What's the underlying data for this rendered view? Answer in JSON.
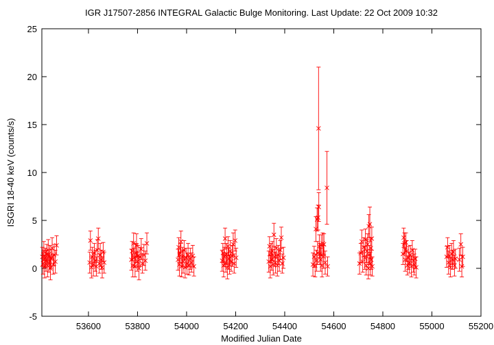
{
  "chart_data": {
    "type": "scatter",
    "title": "IGR J17507-2856   INTEGRAL Galactic Bulge Monitoring.  Last Update: 22 Oct 2009 10:32",
    "xlabel": "Modified Julian Date",
    "ylabel": "ISGRI 18-40 keV (counts/s)",
    "xlim": [
      53410,
      55200
    ],
    "ylim": [
      -5,
      25
    ],
    "x_ticks": [
      53600,
      53800,
      54000,
      54200,
      54400,
      54600,
      54800,
      55000,
      55200
    ],
    "y_ticks": [
      -5,
      0,
      5,
      10,
      15,
      20,
      25
    ],
    "grid": false,
    "legend": "none",
    "series_color": "#ff0000",
    "marker": "x with error bars",
    "series": [
      {
        "points": [
          [
            53412,
            1.2,
            1.0
          ],
          [
            53415,
            0.5,
            1.1
          ],
          [
            53418,
            1.8,
            1.0
          ],
          [
            53421,
            0.2,
            1.2
          ],
          [
            53424,
            1.1,
            1.0
          ],
          [
            53427,
            0.8,
            1.1
          ],
          [
            53430,
            1.5,
            1.0
          ],
          [
            53433,
            0.3,
            1.2
          ],
          [
            53436,
            1.9,
            1.1
          ],
          [
            53439,
            0.6,
            1.0
          ],
          [
            53442,
            1.3,
            1.1
          ],
          [
            53445,
            0.0,
            1.2
          ],
          [
            53448,
            1.0,
            1.0
          ],
          [
            53452,
            2.1,
            1.1
          ],
          [
            53456,
            0.4,
            1.0
          ],
          [
            53460,
            1.4,
            1.1
          ],
          [
            53465,
            0.7,
            1.2
          ],
          [
            53470,
            2.4,
            1.0
          ],
          [
            53605,
            0.6,
            1.1
          ],
          [
            53608,
            2.9,
            1.0
          ],
          [
            53612,
            0.1,
            1.1
          ],
          [
            53616,
            1.2,
            1.0
          ],
          [
            53620,
            0.4,
            1.2
          ],
          [
            53624,
            1.6,
            1.0
          ],
          [
            53628,
            0.8,
            1.1
          ],
          [
            53632,
            0.2,
            1.0
          ],
          [
            53636,
            1.9,
            1.1
          ],
          [
            53640,
            3.1,
            1.1
          ],
          [
            53644,
            0.5,
            1.0
          ],
          [
            53648,
            1.4,
            1.2
          ],
          [
            53652,
            0.9,
            1.0
          ],
          [
            53656,
            0.1,
            1.1
          ],
          [
            53660,
            1.7,
            1.0
          ],
          [
            53664,
            0.6,
            1.1
          ],
          [
            53775,
            0.9,
            1.1
          ],
          [
            53778,
            1.8,
            1.0
          ],
          [
            53781,
            0.3,
            1.2
          ],
          [
            53784,
            2.6,
            1.1
          ],
          [
            53787,
            1.1,
            1.0
          ],
          [
            53790,
            0.2,
            1.1
          ],
          [
            53793,
            1.6,
            1.0
          ],
          [
            53796,
            2.4,
            1.2
          ],
          [
            53799,
            0.7,
            1.0
          ],
          [
            53802,
            1.3,
            1.1
          ],
          [
            53806,
            0.0,
            1.2
          ],
          [
            53810,
            1.2,
            1.0
          ],
          [
            53815,
            2.0,
            1.1
          ],
          [
            53820,
            0.5,
            1.0
          ],
          [
            53826,
            1.4,
            1.1
          ],
          [
            53832,
            0.8,
            1.0
          ],
          [
            53838,
            2.6,
            1.1
          ],
          [
            53965,
            0.9,
            1.1
          ],
          [
            53968,
            2.2,
            1.0
          ],
          [
            53971,
            0.4,
            1.2
          ],
          [
            53974,
            1.6,
            1.0
          ],
          [
            53977,
            2.8,
            1.1
          ],
          [
            53980,
            0.2,
            1.1
          ],
          [
            53983,
            1.2,
            1.0
          ],
          [
            53986,
            0.7,
            1.2
          ],
          [
            53990,
            1.9,
            1.0
          ],
          [
            53994,
            0.1,
            1.1
          ],
          [
            53998,
            1.1,
            1.0
          ],
          [
            54002,
            0.5,
            1.1
          ],
          [
            54006,
            1.4,
            1.2
          ],
          [
            54010,
            0.3,
            1.0
          ],
          [
            54015,
            1.0,
            1.1
          ],
          [
            54020,
            0.6,
            1.0
          ],
          [
            54025,
            1.3,
            1.1
          ],
          [
            54030,
            0.2,
            1.0
          ],
          [
            54145,
            0.8,
            1.1
          ],
          [
            54148,
            1.6,
            1.0
          ],
          [
            54151,
            0.3,
            1.2
          ],
          [
            54154,
            1.2,
            1.0
          ],
          [
            54157,
            3.1,
            1.1
          ],
          [
            54160,
            0.6,
            1.0
          ],
          [
            54163,
            1.5,
            1.1
          ],
          [
            54166,
            0.1,
            1.2
          ],
          [
            54169,
            2.3,
            1.0
          ],
          [
            54172,
            1.0,
            1.1
          ],
          [
            54175,
            0.4,
            1.0
          ],
          [
            54178,
            1.8,
            1.1
          ],
          [
            54182,
            0.7,
            1.0
          ],
          [
            54186,
            1.3,
            1.1
          ],
          [
            54190,
            2.5,
            1.2
          ],
          [
            54194,
            0.5,
            1.0
          ],
          [
            54198,
            2.9,
            1.1
          ],
          [
            54202,
            1.1,
            1.0
          ],
          [
            54335,
            0.7,
            1.1
          ],
          [
            54338,
            2.3,
            1.0
          ],
          [
            54341,
            0.2,
            1.2
          ],
          [
            54344,
            1.6,
            1.0
          ],
          [
            54347,
            0.9,
            1.1
          ],
          [
            54350,
            1.8,
            1.0
          ],
          [
            54353,
            0.4,
            1.1
          ],
          [
            54356,
            3.5,
            1.2
          ],
          [
            54359,
            1.2,
            1.0
          ],
          [
            54362,
            0.6,
            1.1
          ],
          [
            54366,
            2.1,
            1.0
          ],
          [
            54370,
            0.3,
            1.1
          ],
          [
            54374,
            1.4,
            1.0
          ],
          [
            54378,
            0.8,
            1.1
          ],
          [
            54382,
            1.9,
            1.0
          ],
          [
            54386,
            3.2,
            1.1
          ],
          [
            54390,
            0.5,
            1.0
          ],
          [
            54395,
            1.1,
            1.1
          ],
          [
            54515,
            0.4,
            1.2
          ],
          [
            54520,
            1.2,
            1.1
          ],
          [
            54524,
            0.3,
            1.2
          ],
          [
            54527,
            4.1,
            1.3
          ],
          [
            54530,
            0.8,
            1.1
          ],
          [
            54532,
            5.1,
            1.2
          ],
          [
            54534,
            1.6,
            1.2
          ],
          [
            54536,
            5.3,
            1.3
          ],
          [
            54538,
            14.6,
            6.4
          ],
          [
            54539,
            6.4,
            1.5
          ],
          [
            54541,
            2.3,
            1.2
          ],
          [
            54543,
            1.5,
            1.1
          ],
          [
            54546,
            0.9,
            1.2
          ],
          [
            54549,
            2.4,
            1.1
          ],
          [
            54552,
            0.3,
            1.2
          ],
          [
            54555,
            2.6,
            1.1
          ],
          [
            54558,
            1.2,
            1.2
          ],
          [
            54560,
            2.5,
            1.1
          ],
          [
            54565,
            0.6,
            1.2
          ],
          [
            54572,
            8.4,
            3.8
          ],
          [
            54575,
            0.2,
            1.0
          ],
          [
            54705,
            0.5,
            1.1
          ],
          [
            54710,
            1.6,
            1.0
          ],
          [
            54714,
            2.8,
            1.2
          ],
          [
            54718,
            0.7,
            1.1
          ],
          [
            54722,
            2.2,
            1.0
          ],
          [
            54726,
            1.1,
            1.2
          ],
          [
            54729,
            3.0,
            1.1
          ],
          [
            54732,
            0.3,
            1.0
          ],
          [
            54735,
            1.8,
            1.2
          ],
          [
            54738,
            2.5,
            1.1
          ],
          [
            54741,
            0.0,
            1.1
          ],
          [
            54743,
            4.4,
            1.2
          ],
          [
            54745,
            1.4,
            1.0
          ],
          [
            54747,
            4.6,
            1.8
          ],
          [
            54749,
            0.5,
            1.2
          ],
          [
            54751,
            2.1,
            1.1
          ],
          [
            54753,
            0.9,
            1.0
          ],
          [
            54755,
            3.1,
            1.2
          ],
          [
            54757,
            0.2,
            1.0
          ],
          [
            54882,
            1.5,
            1.1
          ],
          [
            54885,
            3.2,
            1.0
          ],
          [
            54888,
            2.6,
            1.1
          ],
          [
            54891,
            0.9,
            1.2
          ],
          [
            54894,
            2.7,
            1.0
          ],
          [
            54897,
            1.8,
            1.1
          ],
          [
            54900,
            0.3,
            1.0
          ],
          [
            54904,
            1.1,
            1.2
          ],
          [
            54908,
            0.6,
            1.1
          ],
          [
            54912,
            1.4,
            1.0
          ],
          [
            54916,
            0.2,
            1.1
          ],
          [
            54920,
            1.9,
            1.0
          ],
          [
            54924,
            0.8,
            1.2
          ],
          [
            54928,
            0.4,
            1.1
          ],
          [
            54932,
            1.0,
            1.0
          ],
          [
            54936,
            0.1,
            1.1
          ],
          [
            55060,
            1.2,
            1.1
          ],
          [
            55064,
            2.2,
            1.0
          ],
          [
            55068,
            0.6,
            1.2
          ],
          [
            55072,
            1.3,
            1.1
          ],
          [
            55076,
            0.1,
            1.0
          ],
          [
            55080,
            1.5,
            1.1
          ],
          [
            55084,
            0.9,
            1.0
          ],
          [
            55088,
            1.7,
            1.2
          ],
          [
            55092,
            0.3,
            1.1
          ],
          [
            55096,
            1.0,
            1.0
          ],
          [
            55112,
            0.9,
            1.2
          ],
          [
            55118,
            2.5,
            1.1
          ],
          [
            55122,
            0.2,
            1.1
          ],
          [
            55126,
            1.2,
            1.0
          ]
        ]
      }
    ]
  }
}
